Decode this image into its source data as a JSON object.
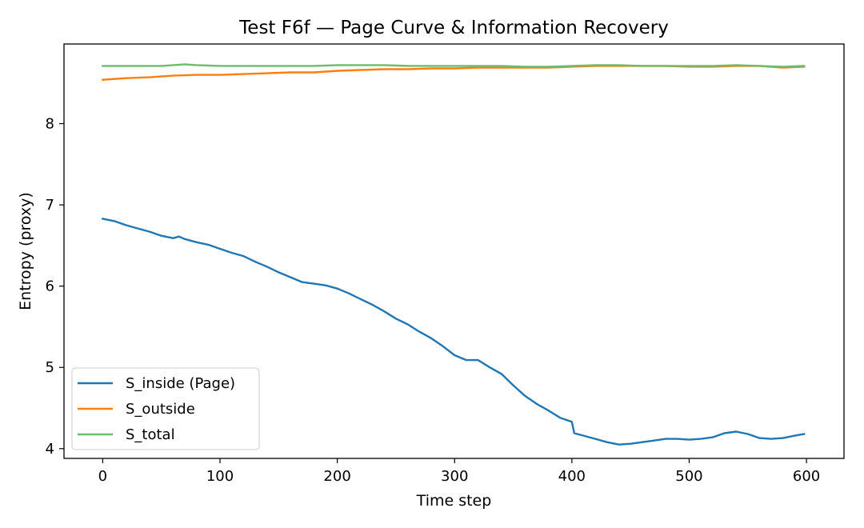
{
  "chart_data": {
    "type": "line",
    "title": "Test F6f — Page Curve & Information Recovery",
    "xlabel": "Time step",
    "ylabel": "Entropy (proxy)",
    "xlim": [
      -33,
      632
    ],
    "ylim": [
      3.88,
      8.98
    ],
    "xticks": [
      0,
      100,
      200,
      300,
      400,
      500,
      600
    ],
    "yticks": [
      4,
      5,
      6,
      7,
      8
    ],
    "grid": false,
    "legend_position": "lower-left",
    "series": [
      {
        "name": "S_inside (Page)",
        "color": "#1f77b4",
        "x": [
          0,
          10,
          20,
          30,
          40,
          50,
          60,
          65,
          70,
          80,
          90,
          100,
          110,
          120,
          130,
          140,
          150,
          160,
          170,
          180,
          190,
          200,
          210,
          220,
          230,
          240,
          250,
          260,
          270,
          280,
          290,
          300,
          310,
          320,
          330,
          340,
          350,
          360,
          370,
          380,
          390,
          400,
          402,
          410,
          420,
          430,
          440,
          450,
          460,
          470,
          480,
          490,
          500,
          510,
          520,
          530,
          540,
          550,
          560,
          570,
          580,
          590,
          598
        ],
        "y": [
          6.83,
          6.8,
          6.75,
          6.71,
          6.67,
          6.62,
          6.59,
          6.61,
          6.58,
          6.54,
          6.51,
          6.46,
          6.41,
          6.37,
          6.3,
          6.24,
          6.17,
          6.11,
          6.05,
          6.03,
          6.01,
          5.97,
          5.91,
          5.84,
          5.77,
          5.69,
          5.6,
          5.53,
          5.44,
          5.36,
          5.26,
          5.15,
          5.09,
          5.09,
          5.0,
          4.92,
          4.78,
          4.65,
          4.55,
          4.47,
          4.38,
          4.33,
          4.19,
          4.16,
          4.12,
          4.08,
          4.05,
          4.06,
          4.08,
          4.1,
          4.12,
          4.12,
          4.11,
          4.12,
          4.14,
          4.19,
          4.21,
          4.18,
          4.13,
          4.12,
          4.13,
          4.16,
          4.18
        ]
      },
      {
        "name": "S_outside",
        "color": "#ff7f0e",
        "x": [
          0,
          20,
          40,
          60,
          80,
          100,
          120,
          140,
          160,
          180,
          200,
          220,
          240,
          260,
          280,
          300,
          320,
          340,
          360,
          380,
          400,
          420,
          440,
          460,
          480,
          500,
          520,
          540,
          560,
          580,
          598
        ],
        "y": [
          8.54,
          8.56,
          8.57,
          8.59,
          8.6,
          8.6,
          8.61,
          8.62,
          8.63,
          8.63,
          8.65,
          8.66,
          8.67,
          8.67,
          8.68,
          8.68,
          8.69,
          8.69,
          8.69,
          8.69,
          8.7,
          8.71,
          8.71,
          8.71,
          8.71,
          8.7,
          8.7,
          8.71,
          8.71,
          8.69,
          8.7
        ]
      },
      {
        "name": "S_total",
        "color": "#6bbd6b",
        "x": [
          0,
          20,
          40,
          50,
          60,
          70,
          80,
          100,
          120,
          140,
          160,
          180,
          200,
          220,
          240,
          260,
          280,
          300,
          320,
          340,
          360,
          380,
          400,
          420,
          440,
          460,
          480,
          500,
          520,
          540,
          560,
          580,
          598
        ],
        "y": [
          8.71,
          8.71,
          8.71,
          8.71,
          8.72,
          8.73,
          8.72,
          8.71,
          8.71,
          8.71,
          8.71,
          8.71,
          8.72,
          8.72,
          8.72,
          8.71,
          8.71,
          8.71,
          8.71,
          8.71,
          8.7,
          8.7,
          8.71,
          8.72,
          8.72,
          8.71,
          8.71,
          8.71,
          8.71,
          8.72,
          8.71,
          8.7,
          8.71
        ]
      }
    ]
  }
}
